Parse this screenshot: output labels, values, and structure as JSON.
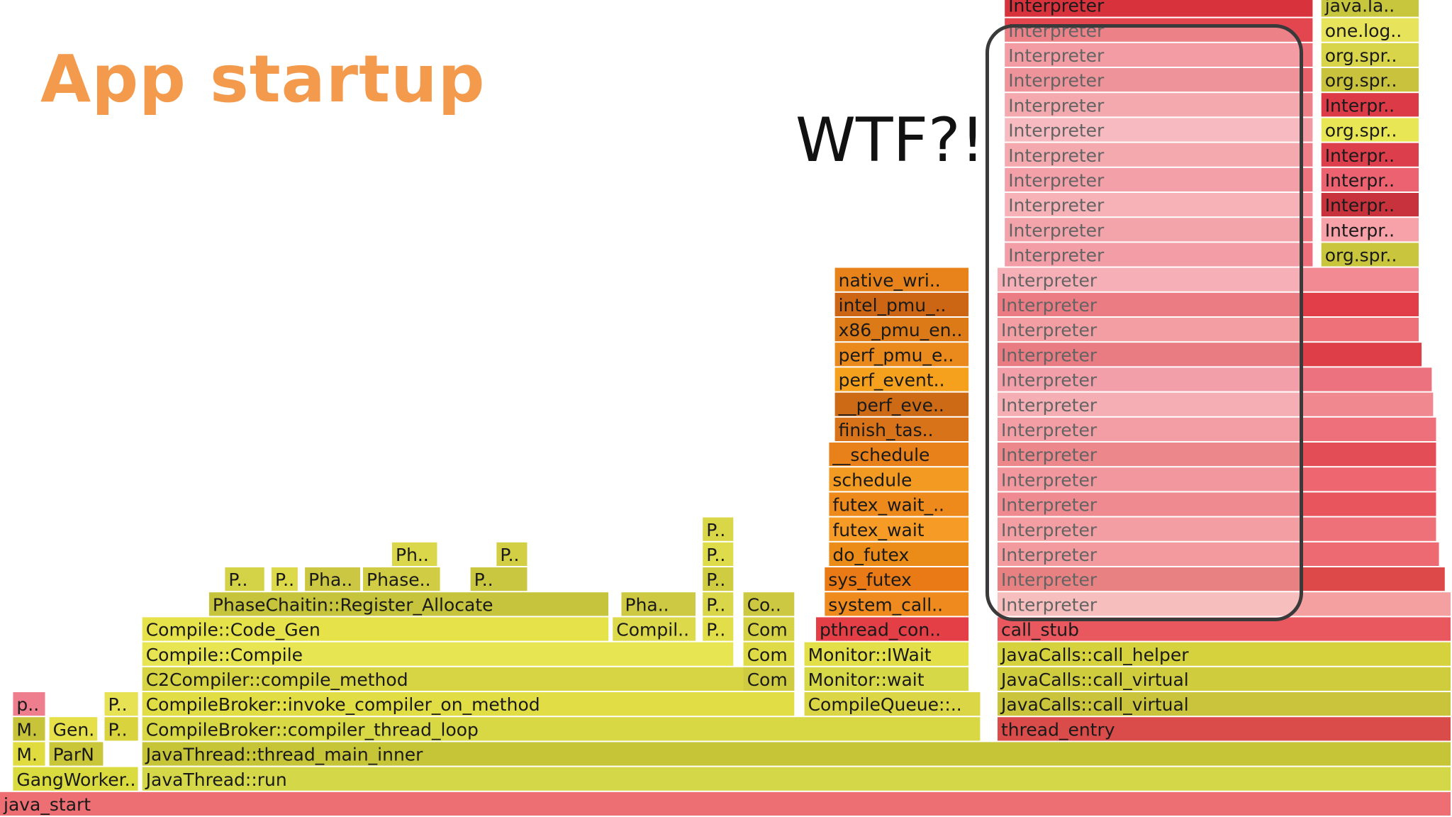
{
  "slide": {
    "title": "App startup",
    "annotation": "WTF?!"
  },
  "chart_data": {
    "type": "flame graph",
    "frames": [
      {
        "name": "java_start",
        "depth": 0,
        "start": 0.0,
        "end": 1.0,
        "color": "#ee6f73"
      },
      {
        "name": "GangWorker..",
        "depth": 1,
        "start": 0.009,
        "end": 0.096,
        "color": "#d9db3e"
      },
      {
        "name": "JavaThread::run",
        "depth": 1,
        "start": 0.098,
        "end": 1.0,
        "color": "#d4d848"
      },
      {
        "name": "M..",
        "depth": 2,
        "start": 0.009,
        "end": 0.032,
        "color": "#e0dc40"
      },
      {
        "name": "ParNew..",
        "depth": 2,
        "start": 0.034,
        "end": 0.072,
        "color": "#c9c63a"
      },
      {
        "name": "JavaThread::thread_main_inner",
        "depth": 2,
        "start": 0.098,
        "end": 1.0,
        "color": "#c6c538"
      },
      {
        "name": "M..",
        "depth": 3,
        "start": 0.009,
        "end": 0.032,
        "color": "#c8c43a"
      },
      {
        "name": "Gen..",
        "depth": 3,
        "start": 0.034,
        "end": 0.068,
        "color": "#e5e04a"
      },
      {
        "name": "P..",
        "depth": 3,
        "start": 0.072,
        "end": 0.096,
        "color": "#d9d33e"
      },
      {
        "name": "CompileBroker::compiler_thread_loop",
        "depth": 3,
        "start": 0.098,
        "end": 0.676,
        "color": "#d8d744"
      },
      {
        "name": "thread_entry",
        "depth": 3,
        "start": 0.687,
        "end": 1.0,
        "color": "#d94c4a"
      },
      {
        "name": "p..",
        "depth": 4,
        "start": 0.009,
        "end": 0.032,
        "color": "#ee7e8e"
      },
      {
        "name": "P..",
        "depth": 4,
        "start": 0.072,
        "end": 0.096,
        "color": "#e7e254"
      },
      {
        "name": "CompileBroker::invoke_compiler_on_method",
        "depth": 4,
        "start": 0.098,
        "end": 0.548,
        "color": "#e0dd45"
      },
      {
        "name": "CompileQueue::..",
        "depth": 4,
        "start": 0.554,
        "end": 0.676,
        "color": "#dad646"
      },
      {
        "name": "JavaCalls::call_virtual",
        "depth": 4,
        "start": 0.687,
        "end": 1.0,
        "color": "#c9c43c"
      },
      {
        "name": "C2Compiler::compile_method",
        "depth": 5,
        "start": 0.098,
        "end": 0.548,
        "color": "#d7d543"
      },
      {
        "name": "Com..",
        "depth": 5,
        "start": 0.512,
        "end": 0.548,
        "color": "#cfcc42"
      },
      {
        "name": "Monitor::wait",
        "depth": 5,
        "start": 0.554,
        "end": 0.668,
        "color": "#d7d848"
      },
      {
        "name": "JavaCalls::call_virtual",
        "depth": 5,
        "start": 0.687,
        "end": 1.0,
        "color": "#cfcc3e"
      },
      {
        "name": "Compile::Compile",
        "depth": 6,
        "start": 0.098,
        "end": 0.506,
        "color": "#e7e552"
      },
      {
        "name": "Com..",
        "depth": 6,
        "start": 0.512,
        "end": 0.548,
        "color": "#dedb46"
      },
      {
        "name": "Monitor::IWait",
        "depth": 6,
        "start": 0.554,
        "end": 0.668,
        "color": "#e3df48"
      },
      {
        "name": "JavaCalls::call_helper",
        "depth": 6,
        "start": 0.687,
        "end": 1.0,
        "color": "#d6d23e"
      },
      {
        "name": "Compile::Code_Gen",
        "depth": 7,
        "start": 0.098,
        "end": 0.42,
        "color": "#e6e34a"
      },
      {
        "name": "Compil..",
        "depth": 7,
        "start": 0.422,
        "end": 0.48,
        "color": "#dcd94a"
      },
      {
        "name": "P..",
        "depth": 7,
        "start": 0.484,
        "end": 0.506,
        "color": "#e1de4a"
      },
      {
        "name": "Com..",
        "depth": 7,
        "start": 0.512,
        "end": 0.548,
        "color": "#d5d246"
      },
      {
        "name": "pthread_con..",
        "depth": 7,
        "start": 0.562,
        "end": 0.668,
        "color": "#e43e46"
      },
      {
        "name": "call_stub",
        "depth": 7,
        "start": 0.687,
        "end": 1.0,
        "color": "#e8585e"
      },
      {
        "name": "PhaseChaitin::Register_Allocate",
        "depth": 8,
        "start": 0.144,
        "end": 0.42,
        "color": "#c6c43c"
      },
      {
        "name": "Pha..",
        "depth": 8,
        "start": 0.428,
        "end": 0.48,
        "color": "#cdc942"
      },
      {
        "name": "P..",
        "depth": 8,
        "start": 0.484,
        "end": 0.506,
        "color": "#d9d64a"
      },
      {
        "name": "Co..",
        "depth": 8,
        "start": 0.512,
        "end": 0.548,
        "color": "#cdc842"
      },
      {
        "name": "system_call..",
        "depth": 8,
        "start": 0.568,
        "end": 0.668,
        "color": "#ef8a1e"
      },
      {
        "name": "Interpreter",
        "depth": 8,
        "start": 0.687,
        "end": 1.0,
        "color": "#f4a0a0"
      },
      {
        "name": "P..",
        "depth": 9,
        "start": 0.155,
        "end": 0.183,
        "color": "#d4d246"
      },
      {
        "name": "P..",
        "depth": 9,
        "start": 0.187,
        "end": 0.206,
        "color": "#dcd94a"
      },
      {
        "name": "Pha..",
        "depth": 9,
        "start": 0.21,
        "end": 0.249,
        "color": "#cbc742"
      },
      {
        "name": "Phase..",
        "depth": 9,
        "start": 0.25,
        "end": 0.304,
        "color": "#d0cd44"
      },
      {
        "name": "P..",
        "depth": 9,
        "start": 0.324,
        "end": 0.364,
        "color": "#c9c640"
      },
      {
        "name": "P..",
        "depth": 9,
        "start": 0.484,
        "end": 0.506,
        "color": "#cfcc42"
      },
      {
        "name": "sys_futex",
        "depth": 9,
        "start": 0.568,
        "end": 0.668,
        "color": "#e97a16"
      },
      {
        "name": "Interpreter",
        "depth": 9,
        "start": 0.687,
        "end": 0.996,
        "color": "#dd4848"
      },
      {
        "name": "Ph..",
        "depth": 10,
        "start": 0.27,
        "end": 0.302,
        "color": "#dad84a"
      },
      {
        "name": "P..",
        "depth": 10,
        "start": 0.342,
        "end": 0.364,
        "color": "#d3cf44"
      },
      {
        "name": "P..",
        "depth": 10,
        "start": 0.484,
        "end": 0.506,
        "color": "#dfdc4c"
      },
      {
        "name": "do_futex",
        "depth": 10,
        "start": 0.571,
        "end": 0.668,
        "color": "#ec8c18"
      },
      {
        "name": "Interpreter",
        "depth": 10,
        "start": 0.687,
        "end": 0.992,
        "color": "#ee6a72"
      },
      {
        "name": "P..",
        "depth": 11,
        "start": 0.484,
        "end": 0.506,
        "color": "#d9d648"
      },
      {
        "name": "futex_wait",
        "depth": 11,
        "start": 0.571,
        "end": 0.668,
        "color": "#f59b26"
      },
      {
        "name": "Interpreter",
        "depth": 11,
        "start": 0.687,
        "end": 0.99,
        "color": "#ee7078"
      },
      {
        "name": "futex_wait_..",
        "depth": 12,
        "start": 0.571,
        "end": 0.668,
        "color": "#ee8a1c"
      },
      {
        "name": "Interpreter",
        "depth": 12,
        "start": 0.687,
        "end": 0.99,
        "color": "#e8555c"
      },
      {
        "name": "schedule",
        "depth": 13,
        "start": 0.571,
        "end": 0.668,
        "color": "#f29a22"
      },
      {
        "name": "Interpreter",
        "depth": 13,
        "start": 0.687,
        "end": 0.99,
        "color": "#ee6670"
      },
      {
        "name": "__schedule",
        "depth": 14,
        "start": 0.571,
        "end": 0.668,
        "color": "#e9811a"
      },
      {
        "name": "Interpreter",
        "depth": 14,
        "start": 0.687,
        "end": 0.99,
        "color": "#e34e56"
      },
      {
        "name": "finish_tas..",
        "depth": 15,
        "start": 0.575,
        "end": 0.668,
        "color": "#d9731a"
      },
      {
        "name": "Interpreter",
        "depth": 15,
        "start": 0.687,
        "end": 0.99,
        "color": "#ee707a"
      },
      {
        "name": "__perf_eve..",
        "depth": 16,
        "start": 0.575,
        "end": 0.668,
        "color": "#cd6a16"
      },
      {
        "name": "Interpreter",
        "depth": 16,
        "start": 0.687,
        "end": 0.988,
        "color": "#f08890"
      },
      {
        "name": "perf_event..",
        "depth": 17,
        "start": 0.575,
        "end": 0.668,
        "color": "#f5a11e"
      },
      {
        "name": "Interpreter",
        "depth": 17,
        "start": 0.687,
        "end": 0.987,
        "color": "#ec7280"
      },
      {
        "name": "perf_pmu_e..",
        "depth": 18,
        "start": 0.575,
        "end": 0.668,
        "color": "#ea8a1c"
      },
      {
        "name": "Interpreter",
        "depth": 18,
        "start": 0.687,
        "end": 0.98,
        "color": "#dd3e48"
      },
      {
        "name": "x86_pmu_en..",
        "depth": 19,
        "start": 0.575,
        "end": 0.668,
        "color": "#dc7a18"
      },
      {
        "name": "Interpreter",
        "depth": 19,
        "start": 0.687,
        "end": 0.978,
        "color": "#ee7078"
      },
      {
        "name": "intel_pmu_..",
        "depth": 20,
        "start": 0.575,
        "end": 0.668,
        "color": "#cc6614"
      },
      {
        "name": "Interpreter",
        "depth": 20,
        "start": 0.687,
        "end": 0.978,
        "color": "#e23e4a"
      },
      {
        "name": "native_wri..",
        "depth": 21,
        "start": 0.575,
        "end": 0.668,
        "color": "#e7831a"
      },
      {
        "name": "Interpreter",
        "depth": 21,
        "start": 0.687,
        "end": 0.978,
        "color": "#f28a94"
      },
      {
        "name": "Interpreter",
        "depth": 22,
        "start": 0.692,
        "end": 0.905,
        "color": "#ee707c"
      },
      {
        "name": "org.spr..",
        "depth": 22,
        "start": 0.91,
        "end": 0.978,
        "color": "#c9c63e"
      },
      {
        "name": "Interpreter",
        "depth": 23,
        "start": 0.692,
        "end": 0.905,
        "color": "#ee7882"
      },
      {
        "name": "Interpr..",
        "depth": 23,
        "start": 0.91,
        "end": 0.978,
        "color": "#f6a2a8"
      },
      {
        "name": "Interpreter",
        "depth": 24,
        "start": 0.692,
        "end": 0.905,
        "color": "#f38e96"
      },
      {
        "name": "Interpr..",
        "depth": 24,
        "start": 0.91,
        "end": 0.978,
        "color": "#c8323c"
      },
      {
        "name": "Interpreter",
        "depth": 25,
        "start": 0.692,
        "end": 0.905,
        "color": "#ee7480"
      },
      {
        "name": "Interpr..",
        "depth": 25,
        "start": 0.91,
        "end": 0.978,
        "color": "#ec6270"
      },
      {
        "name": "Interpreter",
        "depth": 26,
        "start": 0.692,
        "end": 0.905,
        "color": "#ef808a"
      },
      {
        "name": "Interpr..",
        "depth": 26,
        "start": 0.91,
        "end": 0.978,
        "color": "#dc3e4c"
      },
      {
        "name": "Interpreter",
        "depth": 27,
        "start": 0.692,
        "end": 0.905,
        "color": "#f29aa2"
      },
      {
        "name": "org.spr..",
        "depth": 27,
        "start": 0.91,
        "end": 0.978,
        "color": "#e8e654"
      },
      {
        "name": "Interpreter",
        "depth": 28,
        "start": 0.692,
        "end": 0.905,
        "color": "#ee8088"
      },
      {
        "name": "Interpr..",
        "depth": 28,
        "start": 0.91,
        "end": 0.978,
        "color": "#dd3a48"
      },
      {
        "name": "Interpreter",
        "depth": 29,
        "start": 0.692,
        "end": 0.905,
        "color": "#e8606a"
      },
      {
        "name": "org.spr..",
        "depth": 29,
        "start": 0.91,
        "end": 0.978,
        "color": "#c8c23c"
      },
      {
        "name": "Interpreter",
        "depth": 30,
        "start": 0.692,
        "end": 0.905,
        "color": "#ee6e78"
      },
      {
        "name": "org.spr..",
        "depth": 30,
        "start": 0.91,
        "end": 0.978,
        "color": "#d9d54a"
      },
      {
        "name": "Interpreter",
        "depth": 31,
        "start": 0.692,
        "end": 0.905,
        "color": "#e44650"
      },
      {
        "name": "one.log..",
        "depth": 31,
        "start": 0.91,
        "end": 0.978,
        "color": "#e7e35a"
      },
      {
        "name": "Interpreter",
        "depth": 32,
        "start": 0.692,
        "end": 0.905,
        "color": "#d8323c"
      },
      {
        "name": "java.la..",
        "depth": 32,
        "start": 0.91,
        "end": 0.978,
        "color": "#c8c63c"
      }
    ]
  }
}
